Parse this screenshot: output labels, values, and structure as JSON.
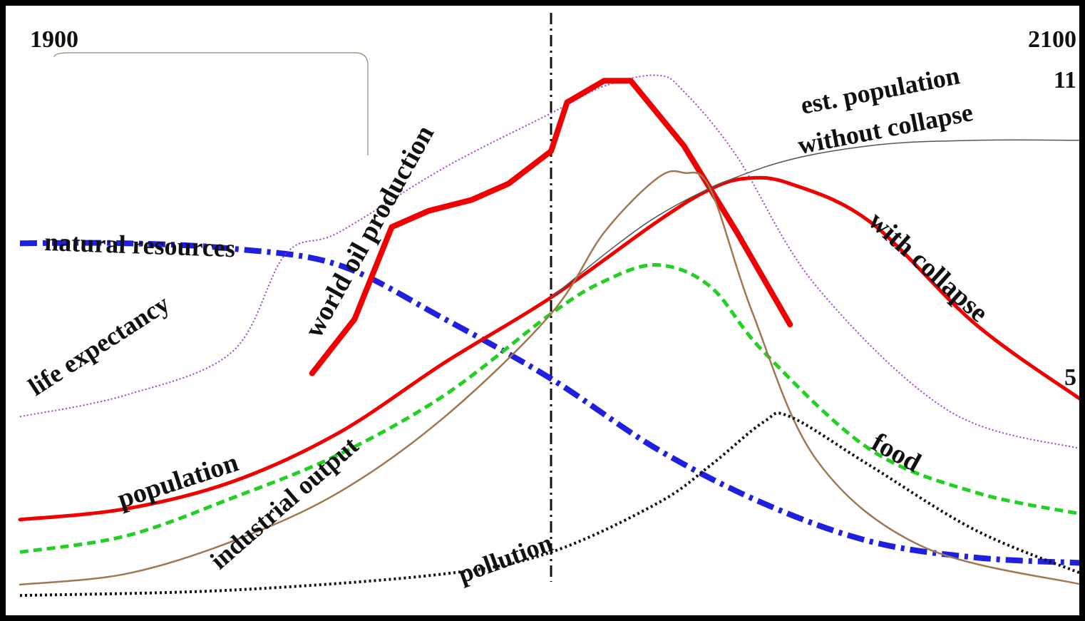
{
  "chart_data": {
    "type": "line",
    "title": "",
    "xlabel": "",
    "ylabel": "",
    "x_start_label": "1900",
    "x_end_label": "2100",
    "x_range": [
      1900,
      2100
    ],
    "marker_year": 2000,
    "grid": false,
    "legend": "none (series labelled directly on the curves)",
    "population_scale": {
      "top_value_label": "11",
      "end_value_label": "5"
    },
    "series": [
      {
        "name": "natural resources",
        "color": "#1f1fe0",
        "style": "dash-dot, thick",
        "x": [
          1900,
          1920,
          1940,
          1960,
          1980,
          2000,
          2020,
          2040,
          2060,
          2080,
          2100
        ],
        "y": [
          0.68,
          0.68,
          0.67,
          0.64,
          0.54,
          0.43,
          0.3,
          0.2,
          0.13,
          0.1,
          0.09
        ]
      },
      {
        "name": "life expectancy",
        "color": "#a040d0",
        "style": "dotted, thin",
        "x": [
          1900,
          1920,
          1940,
          1950,
          1960,
          1980,
          2000,
          2010,
          2020,
          2025,
          2035,
          2050,
          2075,
          2100
        ],
        "y": [
          0.36,
          0.4,
          0.48,
          0.66,
          0.7,
          0.82,
          0.92,
          0.97,
          0.99,
          0.96,
          0.84,
          0.6,
          0.37,
          0.3
        ]
      },
      {
        "name": "world oil production",
        "color": "#f00000",
        "style": "solid, very thick",
        "x": [
          1955,
          1963,
          1970,
          1977,
          1985,
          1992,
          2000,
          2003,
          2010,
          2015,
          2025,
          2035,
          2045
        ],
        "y": [
          0.44,
          0.54,
          0.71,
          0.74,
          0.76,
          0.79,
          0.85,
          0.94,
          0.98,
          0.98,
          0.86,
          0.7,
          0.53
        ]
      },
      {
        "name": "population",
        "color": "#f00000",
        "style": "solid, thick",
        "x": [
          1900,
          1920,
          1940,
          1960,
          1980,
          2000,
          2020,
          2030,
          2037,
          2045,
          2060,
          2080,
          2100
        ],
        "y": [
          0.17,
          0.19,
          0.24,
          0.33,
          0.46,
          0.58,
          0.72,
          0.78,
          0.8,
          0.79,
          0.72,
          0.53,
          0.39
        ]
      },
      {
        "name": "est. population without collapse",
        "color": "#555555",
        "style": "solid, thin",
        "x": [
          2000,
          2020,
          2040,
          2060,
          2080,
          2100
        ],
        "y": [
          0.58,
          0.73,
          0.82,
          0.86,
          0.87,
          0.87
        ]
      },
      {
        "name": "food",
        "color": "#22d022",
        "style": "dashed",
        "x": [
          1900,
          1920,
          1940,
          1960,
          1980,
          2000,
          2010,
          2020,
          2030,
          2040,
          2060,
          2080,
          2100
        ],
        "y": [
          0.11,
          0.14,
          0.21,
          0.29,
          0.4,
          0.55,
          0.61,
          0.64,
          0.6,
          0.48,
          0.3,
          0.22,
          0.18
        ]
      },
      {
        "name": "industrial output",
        "color": "#a07850",
        "style": "solid, thin",
        "x": [
          1900,
          1920,
          1940,
          1960,
          1980,
          2000,
          2010,
          2020,
          2025,
          2030,
          2038,
          2050,
          2070,
          2100
        ],
        "y": [
          0.05,
          0.07,
          0.13,
          0.22,
          0.36,
          0.55,
          0.7,
          0.8,
          0.81,
          0.78,
          0.55,
          0.28,
          0.12,
          0.05
        ]
      },
      {
        "name": "pollution",
        "color": "#111111",
        "style": "dotted",
        "x": [
          1900,
          1940,
          1980,
          2000,
          2020,
          2030,
          2040,
          2045,
          2060,
          2080,
          2100
        ],
        "y": [
          0.03,
          0.04,
          0.07,
          0.11,
          0.2,
          0.27,
          0.35,
          0.36,
          0.27,
          0.15,
          0.07
        ]
      }
    ],
    "annotations": [
      "natural resources",
      "life expectancy",
      "world oil production",
      "population",
      "industrial output",
      "pollution",
      "food",
      "with collapse",
      "est. population",
      "without collapse"
    ]
  }
}
